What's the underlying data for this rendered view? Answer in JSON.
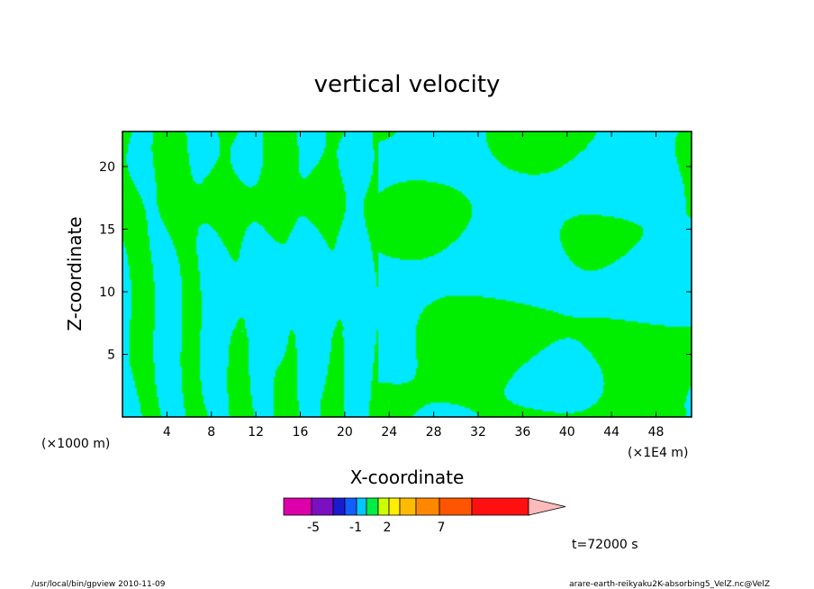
{
  "chart_data": {
    "type": "heatmap",
    "title": "vertical velocity",
    "xlabel": "X-coordinate",
    "ylabel": "Z-coordinate",
    "x_unit_left": "(×1000 m)",
    "x_unit_right": "(×1E4 m)",
    "xlim": [
      0,
      51.2
    ],
    "ylim": [
      0,
      22.8
    ],
    "x_ticks": [
      4,
      8,
      12,
      16,
      20,
      24,
      28,
      32,
      36,
      40,
      44,
      48
    ],
    "y_ticks": [
      5,
      10,
      15,
      20
    ],
    "colorbar": {
      "colors": [
        "#dd00aa",
        "#7a10c0",
        "#1a1ad0",
        "#1060ff",
        "#00c8ff",
        "#00ee44",
        "#ccff00",
        "#ffee00",
        "#ffbb00",
        "#ff8800",
        "#ff5500",
        "#ff1010",
        "#ff7777"
      ],
      "tick_labels": [
        "-5",
        "-1",
        "2",
        "7"
      ],
      "tick_values": [
        -5,
        -1,
        2,
        7
      ],
      "extend": "max",
      "arrow_color": "#ffbbbb"
    },
    "field_colors": {
      "negative": "#00e8ff",
      "positive": "#00ee00"
    },
    "time_label": "t=72000 s"
  },
  "footer": {
    "left": "/usr/local/bin/gpview  2010-11-09",
    "right": "arare-earth-reikyaku2K-absorbing5_VelZ.nc@VelZ"
  }
}
